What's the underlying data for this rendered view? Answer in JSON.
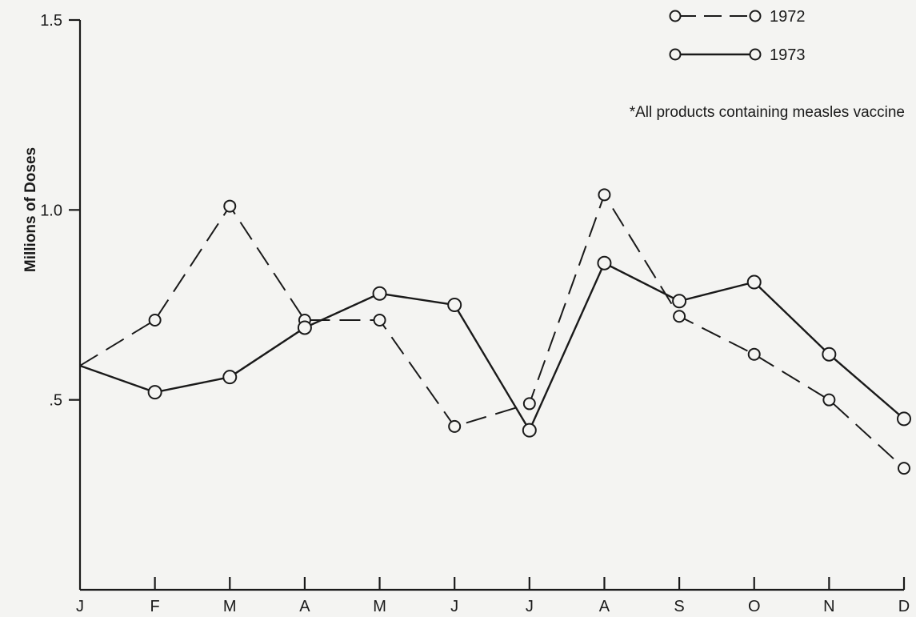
{
  "chart_data": {
    "type": "line",
    "title": "",
    "xlabel": "",
    "ylabel": "Millions of Doses",
    "categories": [
      "J",
      "F",
      "M",
      "A",
      "M",
      "J",
      "J",
      "A",
      "S",
      "O",
      "N",
      "D"
    ],
    "yticks": [
      ".5",
      "1.0",
      "1.5"
    ],
    "ytick_values": [
      0.5,
      1.0,
      1.5
    ],
    "ylim": [
      0,
      1.5
    ],
    "grid": false,
    "legend_position": "top-right",
    "note": "*All products containing measles vaccine",
    "series": [
      {
        "name": "1972",
        "style": "dashed",
        "values": [
          0.59,
          0.71,
          1.01,
          0.71,
          0.71,
          0.43,
          0.49,
          1.04,
          0.72,
          0.62,
          0.5,
          0.32
        ]
      },
      {
        "name": "1973",
        "style": "solid",
        "values": [
          0.59,
          0.52,
          0.56,
          0.69,
          0.78,
          0.75,
          0.42,
          0.86,
          0.76,
          0.81,
          0.62,
          0.45
        ]
      }
    ]
  }
}
